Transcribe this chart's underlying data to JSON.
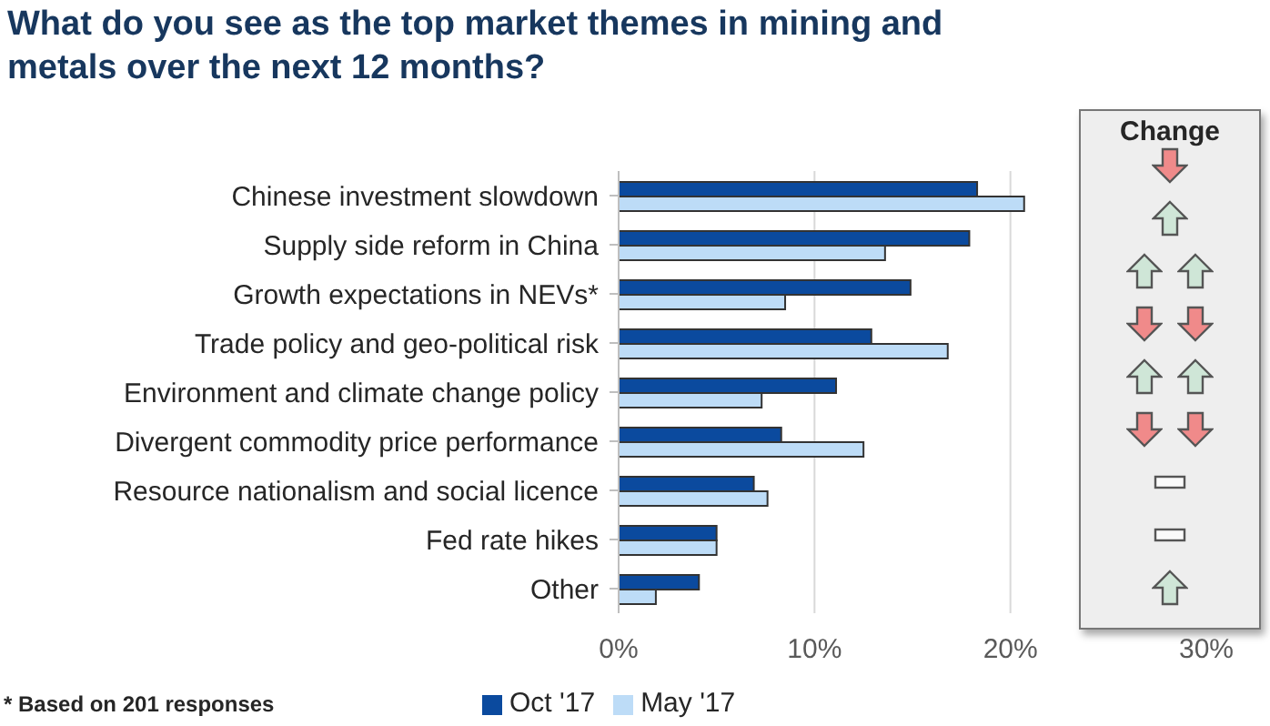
{
  "chart_data": {
    "type": "bar",
    "orientation": "horizontal",
    "title": "What do you see as the top market themes in mining and metals over the next 12 months?",
    "categories": [
      "Chinese investment slowdown",
      "Supply side reform in China",
      "Growth expectations in NEVs*",
      "Trade policy and geo-political risk",
      "Environment and climate change policy",
      "Divergent commodity price performance",
      "Resource nationalism and social licence",
      "Fed rate hikes",
      "Other"
    ],
    "series": [
      {
        "name": "Oct '17",
        "color": "#0b4a9e",
        "values": [
          18.3,
          17.9,
          14.9,
          12.9,
          11.1,
          8.3,
          6.9,
          5.0,
          4.1
        ]
      },
      {
        "name": "May '17",
        "color": "#bddcf7",
        "values": [
          20.7,
          13.6,
          8.5,
          16.8,
          7.3,
          12.5,
          7.6,
          5.0,
          1.9
        ]
      }
    ],
    "xlim": [
      0,
      30
    ],
    "xticks": [
      {
        "value": 0,
        "label": "0%"
      },
      {
        "value": 10,
        "label": "10%"
      },
      {
        "value": 20,
        "label": "20%"
      },
      {
        "value": 30,
        "label": "30%"
      }
    ],
    "grid": "x",
    "legend": "bottom",
    "annotations": [
      "Change",
      "* Based on 201 responses"
    ]
  }
}
